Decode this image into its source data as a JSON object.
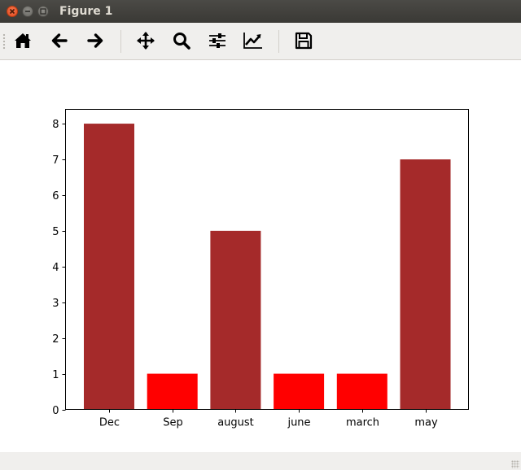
{
  "window": {
    "title": "Figure 1"
  },
  "toolbar": {
    "buttons": [
      {
        "name": "home",
        "icon": "home-icon"
      },
      {
        "name": "back",
        "icon": "arrow-left-icon"
      },
      {
        "name": "forward",
        "icon": "arrow-right-icon"
      },
      {
        "name": "pan",
        "icon": "move-icon"
      },
      {
        "name": "zoom",
        "icon": "magnifier-icon"
      },
      {
        "name": "configure-subplots",
        "icon": "sliders-icon"
      },
      {
        "name": "edit-axis",
        "icon": "line-chart-icon"
      },
      {
        "name": "save",
        "icon": "floppy-disk-icon"
      }
    ]
  },
  "chart_data": {
    "type": "bar",
    "categories": [
      "Dec",
      "Sep",
      "august",
      "june",
      "march",
      "may"
    ],
    "values": [
      8,
      1,
      5,
      1,
      1,
      7
    ],
    "colors": [
      "#a52a2a",
      "#ff0000",
      "#a52a2a",
      "#ff0000",
      "#ff0000",
      "#a52a2a"
    ],
    "yticks": [
      "0",
      "1",
      "2",
      "3",
      "4",
      "5",
      "6",
      "7",
      "8"
    ],
    "ylim": [
      0,
      8.4
    ],
    "title": "",
    "xlabel": "",
    "ylabel": "",
    "grid": false
  }
}
